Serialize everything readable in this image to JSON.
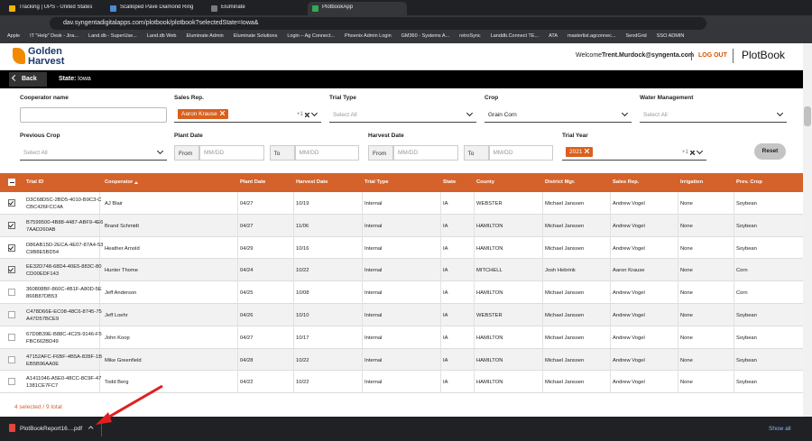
{
  "browser": {
    "tabs": [
      {
        "title": "Tracking | UPS - United States",
        "active": false
      },
      {
        "title": "Scalloped Pavé Diamond Ring i...",
        "active": false
      },
      {
        "title": "Eluminate",
        "active": false
      },
      {
        "title": "PlotbookApp",
        "active": true
      }
    ],
    "url": "dav.syngentadigitalapps.com/plotbook/plotbook?selectedState=Iowa&",
    "bookmarks": [
      "Apple",
      "IT \"Help\" Desk - Jira...",
      "Land.db - SuperUse...",
      "Land.db Web",
      "Eluminate Admin",
      "Eluminate Solutions",
      "Login – Ag Connect...",
      "Phoenix Admin Login",
      "GM360 - Systems A...",
      "retroSync",
      "Landdb.Connect TE...",
      "ATA",
      "masterlist.agconnec...",
      "SendGrid",
      "SSO ADMIN"
    ]
  },
  "header": {
    "logo_line1": "Golden",
    "logo_line2": "Harvest",
    "welcome": "Welcome",
    "user": "Trent.Murdock@syngenta.com",
    "logout": "LOG OUT",
    "app_name": "PlotBook"
  },
  "nav": {
    "back": "Back",
    "state_label": "State:",
    "state": "Iowa"
  },
  "filters": [
    {
      "label": "Cooperator name",
      "kind": "text"
    },
    {
      "label": "Sales Rep.",
      "kind": "chips",
      "chips": [
        "Aaron Krause"
      ],
      "more": "+1"
    },
    {
      "label": "Trial Type",
      "kind": "select",
      "value": "Select All",
      "placeholder": true
    },
    {
      "label": "Crop",
      "kind": "select",
      "value": "Grain Corn",
      "placeholder": false
    },
    {
      "label": "Water Management",
      "kind": "select",
      "value": "Select All",
      "placeholder": true
    },
    {
      "label": "Previous Crop",
      "kind": "select",
      "value": "Select All",
      "placeholder": true
    },
    {
      "label": "Plant Date",
      "kind": "range",
      "from": "From",
      "to": "To",
      "placeholder": "MM/DD"
    },
    {
      "label": "Harvest Date",
      "kind": "range",
      "from": "From",
      "to": "To",
      "placeholder": "MM/DD"
    },
    {
      "label": "Trial Year",
      "kind": "chips",
      "chips": [
        "2021"
      ],
      "more": "+1"
    }
  ],
  "reset": "Reset",
  "table": {
    "columns": [
      "Trial ID",
      "Cooperator",
      "Plant Date",
      "Harvest Date",
      "Trial Type",
      "State",
      "County",
      "District Mgr.",
      "Sales Rep.",
      "Irrigation",
      "Prev. Crop"
    ],
    "sort_column": 1,
    "rows": [
      {
        "checked": true,
        "cells": [
          "D3C68D5C-2BD5-4010-B9C3-CCBC426FCC4A",
          "AJ Blair",
          "04/27",
          "10/19",
          "Internal",
          "IA",
          "WEBSTER",
          "Michael Janssen",
          "Andrew Vogel",
          "None",
          "Soybean"
        ]
      },
      {
        "checked": true,
        "cells": [
          "B7599500-4B88-4487-ABF9-4E67AAD260AB",
          "Brand Schmidt",
          "04/27",
          "11/06",
          "Internal",
          "IA",
          "HAMILTON",
          "Michael Janssen",
          "Andrew Vogel",
          "None",
          "Soybean"
        ]
      },
      {
        "checked": true,
        "cells": [
          "D86AB15D-2ECA-4E07-87A4-53C9B8E5BD54",
          "Heather Arnold",
          "04/29",
          "10/16",
          "Internal",
          "IA",
          "HAMILTON",
          "Michael Janssen",
          "Andrew Vogel",
          "None",
          "Soybean"
        ]
      },
      {
        "checked": true,
        "cells": [
          "EE32D748-68D4-40E5-883C-80CD00EDF143",
          "Hunter Thome",
          "04/24",
          "10/22",
          "Internal",
          "IA",
          "MITCHELL",
          "Josh Hebrink",
          "Aaron Krause",
          "None",
          "Corn"
        ]
      },
      {
        "checked": false,
        "cells": [
          "360808BF-860C-4B1F-A80D-5E866B87DB53",
          "Jeff Anderson",
          "04/25",
          "10/08",
          "Internal",
          "IA",
          "HAMILTON",
          "Michael Janssen",
          "Andrew Vogel",
          "None",
          "Corn"
        ]
      },
      {
        "checked": false,
        "cells": [
          "C478D66E-EC08-48C6-8745-75A47D57BCE9",
          "Jeff Loehr",
          "04/26",
          "10/10",
          "Internal",
          "IA",
          "WEBSTER",
          "Michael Janssen",
          "Andrew Vogel",
          "None",
          "Soybean"
        ]
      },
      {
        "checked": false,
        "cells": [
          "67D9B39E-B88C-4C29-9146-F5FBC662BD49",
          "John Koop",
          "04/27",
          "10/17",
          "Internal",
          "IA",
          "HAMILTON",
          "Michael Janssen",
          "Andrew Vogel",
          "None",
          "Soybean"
        ]
      },
      {
        "checked": false,
        "cells": [
          "47152AFC-F6BF-4B5A-828F-1BEB5B96AA0E",
          "Mike Greenfield",
          "04/28",
          "10/22",
          "Internal",
          "IA",
          "HAMILTON",
          "Michael Janssen",
          "Andrew Vogel",
          "None",
          "Soybean"
        ]
      },
      {
        "checked": false,
        "cells": [
          "A1411046-A5E0-48CC-8C9F-471381CE7FC7",
          "Todd Berg",
          "04/22",
          "10/22",
          "Internal",
          "IA",
          "HAMILTON",
          "Michael Janssen",
          "Andrew Vogel",
          "None",
          "Soybean"
        ]
      }
    ]
  },
  "footer": {
    "selection": "4 selected / 9 total"
  },
  "downloads": {
    "file": "PlotBookReport16....pdf",
    "show_all": "Show all"
  }
}
